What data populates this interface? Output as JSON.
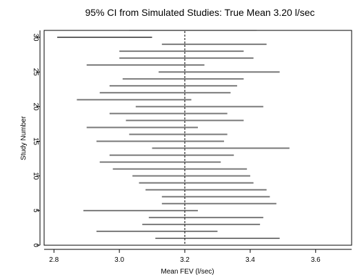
{
  "chart_data": {
    "type": "interval",
    "title": "95% CI from Simulated Studies: True Mean 3.20 l/sec",
    "xlabel": "Mean FEV (l/sec)",
    "ylabel": "Study Number",
    "xlim": [
      2.77,
      3.71
    ],
    "ylim": [
      0,
      31
    ],
    "x_ticks": [
      "2.8",
      "3.0",
      "3.2",
      "3.4",
      "3.6"
    ],
    "y_ticks": [
      "0",
      "5",
      "10",
      "15",
      "20",
      "25",
      "30"
    ],
    "reference_line": {
      "x": 3.2,
      "style": "dashed"
    },
    "grid": false,
    "intervals": [
      {
        "study": 1,
        "low": 3.11,
        "high": 3.49
      },
      {
        "study": 2,
        "low": 2.93,
        "high": 3.3
      },
      {
        "study": 3,
        "low": 3.07,
        "high": 3.43
      },
      {
        "study": 4,
        "low": 3.09,
        "high": 3.44
      },
      {
        "study": 5,
        "low": 2.89,
        "high": 3.24
      },
      {
        "study": 6,
        "low": 3.13,
        "high": 3.48
      },
      {
        "study": 7,
        "low": 3.13,
        "high": 3.46
      },
      {
        "study": 8,
        "low": 3.08,
        "high": 3.45
      },
      {
        "study": 9,
        "low": 3.06,
        "high": 3.41
      },
      {
        "study": 10,
        "low": 3.04,
        "high": 3.4
      },
      {
        "study": 11,
        "low": 2.98,
        "high": 3.39
      },
      {
        "study": 12,
        "low": 2.94,
        "high": 3.31
      },
      {
        "study": 13,
        "low": 2.97,
        "high": 3.35
      },
      {
        "study": 14,
        "low": 3.1,
        "high": 3.52
      },
      {
        "study": 15,
        "low": 2.93,
        "high": 3.32
      },
      {
        "study": 16,
        "low": 3.03,
        "high": 3.33
      },
      {
        "study": 17,
        "low": 2.9,
        "high": 3.24
      },
      {
        "study": 18,
        "low": 3.02,
        "high": 3.38
      },
      {
        "study": 19,
        "low": 2.97,
        "high": 3.33
      },
      {
        "study": 20,
        "low": 3.05,
        "high": 3.44
      },
      {
        "study": 21,
        "low": 2.87,
        "high": 3.22
      },
      {
        "study": 22,
        "low": 2.94,
        "high": 3.34
      },
      {
        "study": 23,
        "low": 2.97,
        "high": 3.36
      },
      {
        "study": 24,
        "low": 3.01,
        "high": 3.38
      },
      {
        "study": 25,
        "low": 3.12,
        "high": 3.49
      },
      {
        "study": 26,
        "low": 2.9,
        "high": 3.26
      },
      {
        "study": 27,
        "low": 3.0,
        "high": 3.41
      },
      {
        "study": 28,
        "low": 3.0,
        "high": 3.38
      },
      {
        "study": 29,
        "low": 3.13,
        "high": 3.45
      },
      {
        "study": 30,
        "low": 2.81,
        "high": 3.1
      },
      {
        "study": 31,
        "low": 3.03,
        "high": 3.42
      }
    ]
  }
}
